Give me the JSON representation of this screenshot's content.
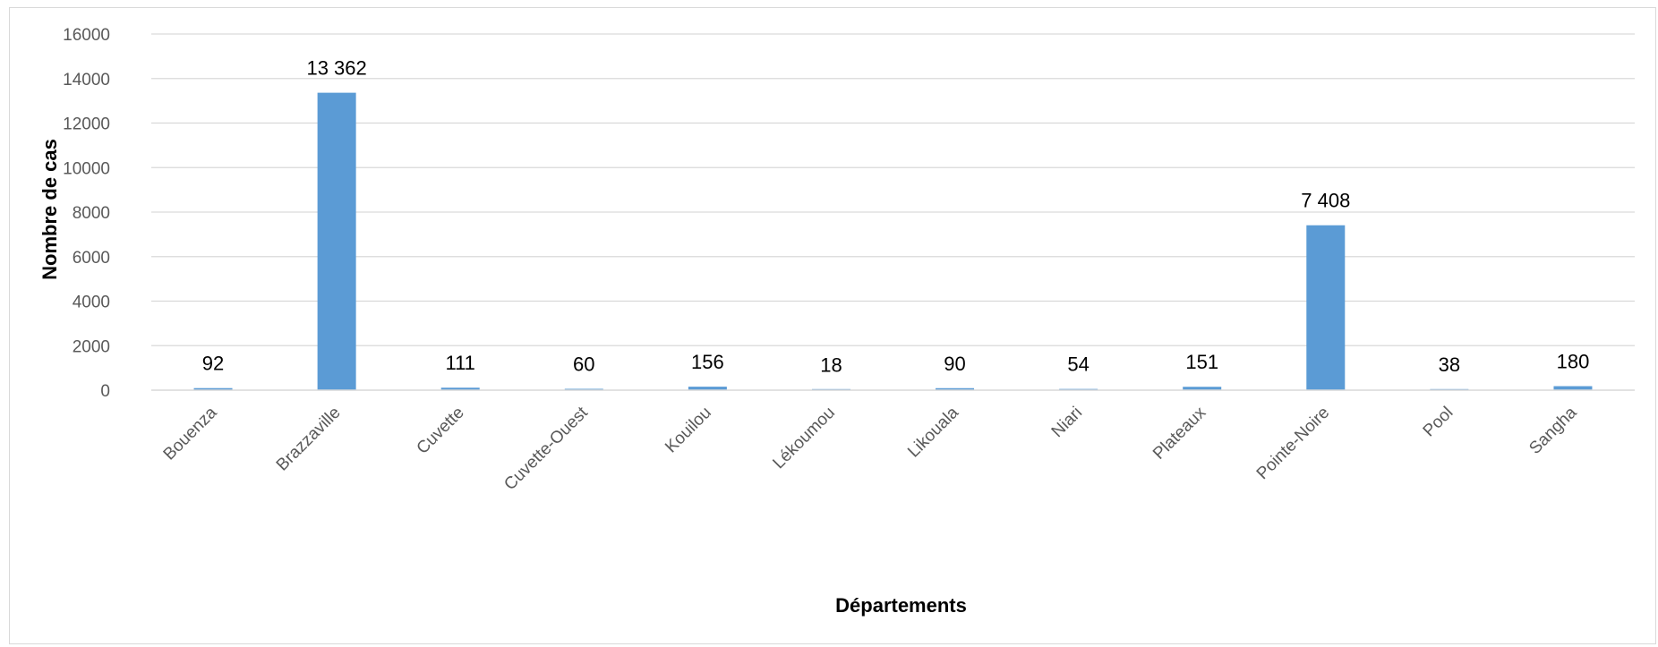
{
  "chart_data": {
    "type": "bar",
    "title": "",
    "xlabel": "Départements",
    "ylabel": "Nombre de cas",
    "categories": [
      "Bouenza",
      "Brazzaville",
      "Cuvette",
      "Cuvette-Ouest",
      "Kouilou",
      "Lékoumou",
      "Likouala",
      "Niari",
      "Plateaux",
      "Pointe-Noire",
      "Pool",
      "Sangha"
    ],
    "values": [
      92,
      13362,
      111,
      60,
      156,
      18,
      90,
      54,
      151,
      7408,
      38,
      180
    ],
    "data_labels": [
      "92",
      "13 362",
      "111",
      "60",
      "156",
      "18",
      "90",
      "54",
      "151",
      "7 408",
      "38",
      "180"
    ],
    "ylim": [
      0,
      16000
    ],
    "yticks": [
      0,
      2000,
      4000,
      6000,
      8000,
      10000,
      12000,
      14000,
      16000
    ],
    "ytick_labels": [
      "0",
      "2000",
      "4000",
      "6000",
      "8000",
      "10000",
      "12000",
      "14000",
      "16000"
    ],
    "grid": true,
    "legend": "none",
    "colors": {
      "bar": "#5b9bd5",
      "grid": "#d9d9d9",
      "tick_text": "#595959",
      "label_text": "#000000"
    }
  }
}
